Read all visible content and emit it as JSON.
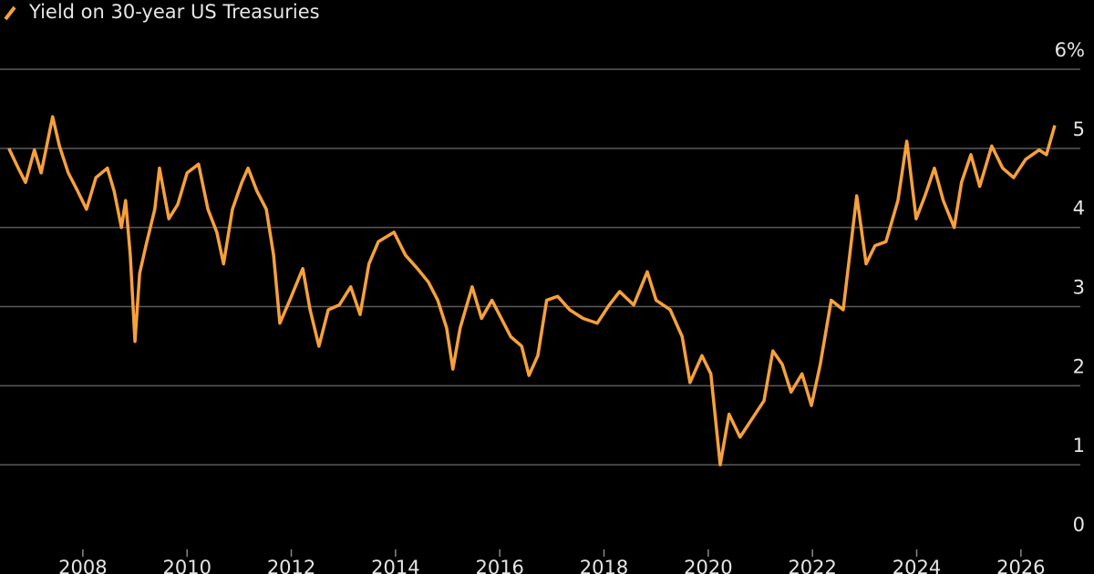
{
  "chart_data": {
    "type": "line",
    "series": [
      {
        "name": "Yield on 30-year US Treasuries",
        "color": "#f7a13a",
        "x": [
          2006.58,
          2006.76,
          2006.9,
          2007.07,
          2007.2,
          2007.42,
          2007.55,
          2007.72,
          2007.9,
          2008.07,
          2008.25,
          2008.47,
          2008.6,
          2008.74,
          2008.82,
          2008.91,
          2009.0,
          2009.09,
          2009.21,
          2009.38,
          2009.47,
          2009.65,
          2009.82,
          2010.0,
          2010.22,
          2010.4,
          2010.57,
          2010.7,
          2010.87,
          2011.05,
          2011.17,
          2011.34,
          2011.52,
          2011.66,
          2011.78,
          2011.97,
          2012.22,
          2012.36,
          2012.53,
          2012.71,
          2012.92,
          2013.14,
          2013.32,
          2013.49,
          2013.67,
          2013.97,
          2014.19,
          2014.42,
          2014.63,
          2014.81,
          2014.98,
          2015.1,
          2015.24,
          2015.47,
          2015.65,
          2015.85,
          2016.03,
          2016.21,
          2016.42,
          2016.56,
          2016.73,
          2016.9,
          2017.11,
          2017.34,
          2017.6,
          2017.87,
          2018.1,
          2018.3,
          2018.57,
          2018.83,
          2019.0,
          2019.27,
          2019.5,
          2019.65,
          2019.88,
          2020.05,
          2020.23,
          2020.4,
          2020.61,
          2020.84,
          2021.07,
          2021.24,
          2021.42,
          2021.59,
          2021.8,
          2021.98,
          2022.15,
          2022.36,
          2022.59,
          2022.85,
          2023.03,
          2023.2,
          2023.41,
          2023.64,
          2023.81,
          2023.99,
          2024.16,
          2024.34,
          2024.51,
          2024.72,
          2024.86,
          2025.04,
          2025.21,
          2025.44,
          2025.65,
          2025.86,
          2026.09,
          2026.35,
          2026.49,
          2026.65
        ],
        "values": [
          5.0,
          4.75,
          4.57,
          4.98,
          4.69,
          5.4,
          5.03,
          4.69,
          4.46,
          4.23,
          4.63,
          4.75,
          4.46,
          4.0,
          4.34,
          3.65,
          2.56,
          3.42,
          3.77,
          4.23,
          4.75,
          4.11,
          4.29,
          4.69,
          4.8,
          4.23,
          3.94,
          3.54,
          4.23,
          4.57,
          4.75,
          4.46,
          4.23,
          3.65,
          2.79,
          3.08,
          3.48,
          2.96,
          2.5,
          2.96,
          3.02,
          3.25,
          2.9,
          3.54,
          3.82,
          3.94,
          3.65,
          3.48,
          3.31,
          3.08,
          2.73,
          2.21,
          2.73,
          3.25,
          2.85,
          3.08,
          2.85,
          2.62,
          2.5,
          2.13,
          2.38,
          3.08,
          3.13,
          2.96,
          2.85,
          2.79,
          3.02,
          3.19,
          3.02,
          3.44,
          3.08,
          2.96,
          2.62,
          2.04,
          2.38,
          2.15,
          1.0,
          1.64,
          1.35,
          1.58,
          1.81,
          2.44,
          2.27,
          1.92,
          2.15,
          1.75,
          2.27,
          3.08,
          2.96,
          4.4,
          3.54,
          3.77,
          3.82,
          4.34,
          5.09,
          4.11,
          4.4,
          4.75,
          4.34,
          4.0,
          4.57,
          4.92,
          4.52,
          5.03,
          4.75,
          4.63,
          4.86,
          4.98,
          4.92,
          5.29
        ]
      }
    ],
    "xlim": [
      2006.41,
      2027.14
    ],
    "xticks": [
      2008,
      2010,
      2012,
      2014,
      2016,
      2018,
      2020,
      2022,
      2024,
      2026
    ],
    "ylim": [
      0,
      6
    ],
    "yticks": [
      0,
      1,
      2,
      3,
      4,
      5,
      {
        "value": 6,
        "label": "6%"
      }
    ],
    "grid": true
  }
}
